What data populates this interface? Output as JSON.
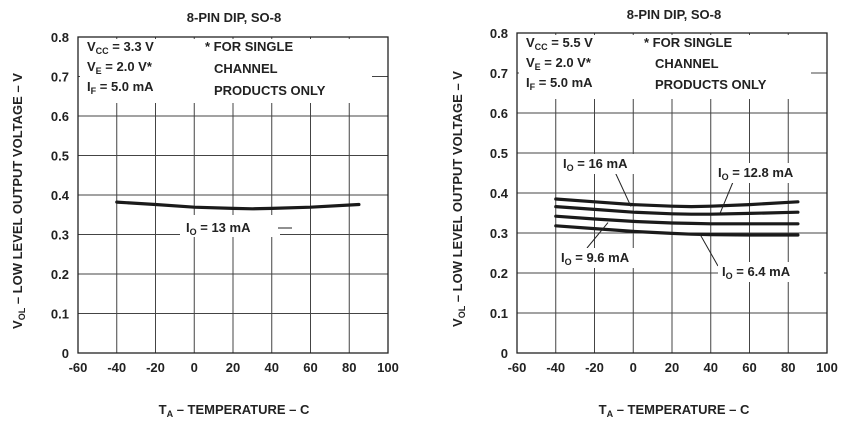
{
  "chart_data": [
    {
      "type": "line",
      "title": "8-PIN DIP, SO-8",
      "ylabel": "V_OL – LOW LEVEL OUTPUT VOLTAGE – V",
      "xlabel": "T_A – TEMPERATURE – C",
      "xlim": [
        -60,
        100
      ],
      "ylim": [
        0,
        0.8
      ],
      "x_ticks": [
        "-60",
        "-40",
        "-20",
        "0",
        "20",
        "40",
        "60",
        "80",
        "100"
      ],
      "y_ticks": [
        "0",
        "0.1",
        "0.2",
        "0.3",
        "0.4",
        "0.5",
        "0.6",
        "0.7",
        "0.8"
      ],
      "grid": true,
      "conditions": {
        "vcc": {
          "main": "V",
          "sub": "CC",
          "rest": " = 3.3 V"
        },
        "ve": {
          "main": "V",
          "sub": "E",
          "rest": " = 2.0 V*"
        },
        "if": {
          "main": "I",
          "sub": "F",
          "rest": " = 5.0 mA"
        }
      },
      "note": [
        "* FOR SINGLE",
        "CHANNEL",
        "PRODUCTS ONLY"
      ],
      "series": [
        {
          "name": {
            "main": "I",
            "sub": "O",
            "rest": " = 13 mA"
          },
          "x": [
            -40,
            -20,
            0,
            20,
            30,
            40,
            60,
            85
          ],
          "y": [
            0.382,
            0.376,
            0.369,
            0.366,
            0.365,
            0.366,
            0.369,
            0.376
          ]
        }
      ]
    },
    {
      "type": "line",
      "title": "8-PIN DIP, SO-8",
      "ylabel": "V_OL – LOW LEVEL OUTPUT VOLTAGE – V",
      "xlabel": "T_A – TEMPERATURE – C",
      "xlim": [
        -60,
        100
      ],
      "ylim": [
        0,
        0.8
      ],
      "x_ticks": [
        "-60",
        "-40",
        "-20",
        "0",
        "20",
        "40",
        "60",
        "80",
        "100"
      ],
      "y_ticks": [
        "0",
        "0.1",
        "0.2",
        "0.3",
        "0.4",
        "0.5",
        "0.6",
        "0.7",
        "0.8"
      ],
      "grid": true,
      "conditions": {
        "vcc": {
          "main": "V",
          "sub": "CC",
          "rest": " = 5.5 V"
        },
        "ve": {
          "main": "V",
          "sub": "E",
          "rest": " = 2.0 V*"
        },
        "if": {
          "main": "I",
          "sub": "F",
          "rest": " = 5.0 mA"
        }
      },
      "note": [
        "* FOR SINGLE",
        "CHANNEL",
        "PRODUCTS ONLY"
      ],
      "series": [
        {
          "name": {
            "main": "I",
            "sub": "O",
            "rest": " = 16 mA"
          },
          "x": [
            -40,
            -20,
            0,
            20,
            30,
            40,
            60,
            85
          ],
          "y": [
            0.385,
            0.378,
            0.371,
            0.367,
            0.366,
            0.367,
            0.371,
            0.378
          ]
        },
        {
          "name": {
            "main": "I",
            "sub": "O",
            "rest": " = 12.8 mA"
          },
          "x": [
            -40,
            -20,
            0,
            20,
            30,
            40,
            60,
            85
          ],
          "y": [
            0.366,
            0.359,
            0.352,
            0.348,
            0.347,
            0.347,
            0.349,
            0.352
          ]
        },
        {
          "name": {
            "main": "I",
            "sub": "O",
            "rest": " = 9.6 mA"
          },
          "x": [
            -40,
            -20,
            0,
            20,
            30,
            40,
            60,
            85
          ],
          "y": [
            0.342,
            0.335,
            0.329,
            0.325,
            0.324,
            0.323,
            0.323,
            0.323
          ]
        },
        {
          "name": {
            "main": "I",
            "sub": "O",
            "rest": " = 6.4 mA"
          },
          "x": [
            -40,
            -20,
            0,
            20,
            30,
            40,
            60,
            85
          ],
          "y": [
            0.318,
            0.311,
            0.304,
            0.299,
            0.297,
            0.296,
            0.295,
            0.295
          ]
        }
      ]
    }
  ]
}
